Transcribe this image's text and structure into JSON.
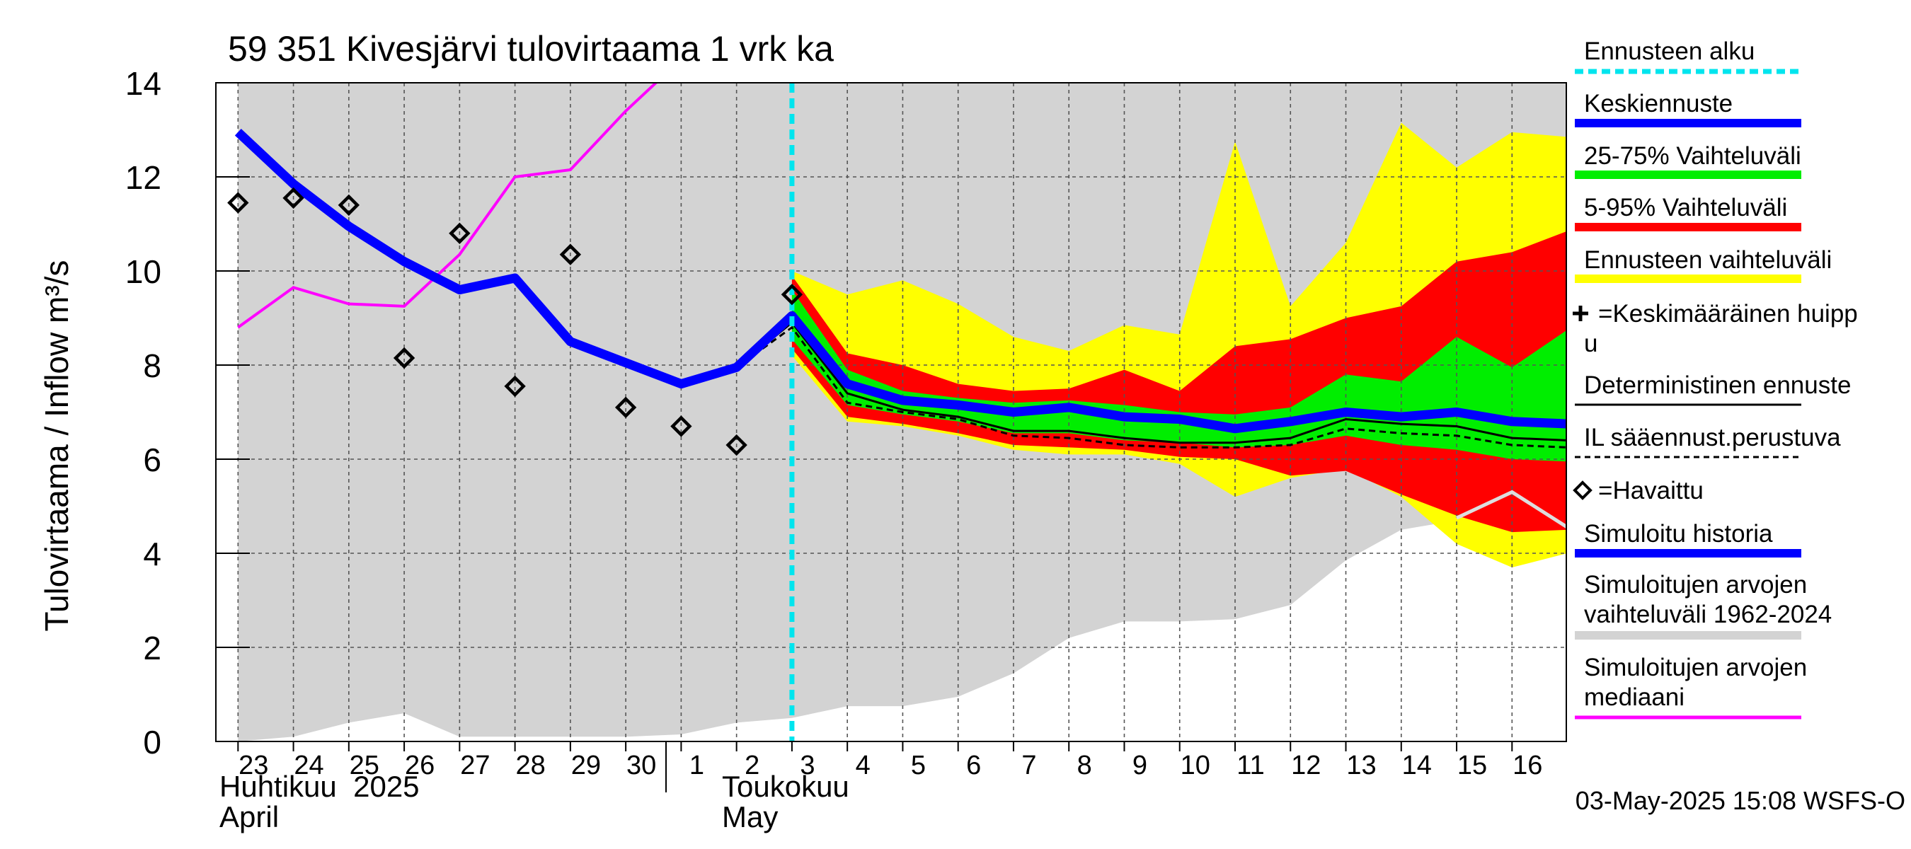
{
  "chart_data": {
    "type": "area",
    "title": "59 351 Kivesjärvi tulovirtaama 1 vrk ka",
    "ylabel": "Tulovirtaama / Inflow   m³/s",
    "ylim": [
      0,
      14
    ],
    "yticks": [
      "0",
      "2",
      "4",
      "6",
      "8",
      "10",
      "12",
      "14"
    ],
    "grid": true,
    "legend_position": "right",
    "x_days": [
      23,
      24,
      25,
      26,
      27,
      28,
      29,
      30,
      31,
      32,
      33,
      34,
      35,
      36,
      37,
      38,
      39,
      40,
      41,
      42,
      43,
      44,
      45,
      46,
      47
    ],
    "xticks": [
      {
        "x": 23,
        "label": "23"
      },
      {
        "x": 24,
        "label": "24"
      },
      {
        "x": 25,
        "label": "25"
      },
      {
        "x": 26,
        "label": "26"
      },
      {
        "x": 27,
        "label": "27"
      },
      {
        "x": 28,
        "label": "28"
      },
      {
        "x": 29,
        "label": "29"
      },
      {
        "x": 30,
        "label": "30"
      },
      {
        "x": 31,
        "label": "1"
      },
      {
        "x": 32,
        "label": "2"
      },
      {
        "x": 33,
        "label": "3"
      },
      {
        "x": 34,
        "label": "4"
      },
      {
        "x": 35,
        "label": "5"
      },
      {
        "x": 36,
        "label": "6"
      },
      {
        "x": 37,
        "label": "7"
      },
      {
        "x": 38,
        "label": "8"
      },
      {
        "x": 39,
        "label": "9"
      },
      {
        "x": 40,
        "label": "10"
      },
      {
        "x": 41,
        "label": "11"
      },
      {
        "x": 42,
        "label": "12"
      },
      {
        "x": 43,
        "label": "13"
      },
      {
        "x": 44,
        "label": "14"
      },
      {
        "x": 45,
        "label": "15"
      },
      {
        "x": 46,
        "label": "16"
      }
    ],
    "month_labels": {
      "april_fi": "Huhtikuu  2025",
      "april_en": "April",
      "may_fi": "Toukokuu",
      "may_en": "May"
    },
    "forecast_start": 33,
    "history_range": {
      "x": [
        23,
        24,
        25,
        26,
        27,
        28,
        29,
        30,
        31,
        32,
        33,
        34,
        35,
        36,
        37,
        38,
        39,
        40,
        41,
        42,
        43,
        44,
        45,
        46,
        47
      ],
      "upper": [
        14,
        14,
        14,
        14,
        14,
        14,
        14,
        14,
        14,
        14,
        14,
        14,
        14,
        14,
        14,
        14,
        14,
        14,
        14,
        14,
        14,
        14,
        14,
        14,
        14
      ],
      "lower": [
        0.0,
        0.1,
        0.4,
        0.6,
        0.1,
        0.1,
        0.1,
        0.1,
        0.15,
        0.4,
        0.5,
        0.75,
        0.75,
        0.95,
        1.45,
        2.2,
        2.55,
        2.55,
        2.6,
        2.9,
        3.85,
        4.5,
        4.7,
        4.9,
        4.8
      ]
    },
    "band_yellow": {
      "x": [
        33,
        34,
        35,
        36,
        37,
        38,
        39,
        40,
        41,
        42,
        43,
        44,
        45,
        46,
        47
      ],
      "upper": [
        10.0,
        9.5,
        9.8,
        9.3,
        8.6,
        8.3,
        8.85,
        8.65,
        12.75,
        9.25,
        10.6,
        13.15,
        12.2,
        12.95,
        12.85
      ],
      "lower": [
        8.2,
        6.8,
        6.7,
        6.5,
        6.2,
        6.1,
        6.1,
        5.9,
        5.2,
        5.6,
        5.8,
        5.2,
        4.2,
        3.7,
        4.0
      ]
    },
    "band_red": {
      "x": [
        33,
        34,
        35,
        36,
        37,
        38,
        39,
        40,
        41,
        42,
        43,
        44,
        45,
        46,
        47
      ],
      "upper": [
        9.9,
        8.25,
        8.0,
        7.6,
        7.45,
        7.5,
        7.9,
        7.45,
        8.4,
        8.55,
        9.0,
        9.25,
        10.2,
        10.4,
        10.85
      ],
      "lower": [
        8.35,
        6.9,
        6.75,
        6.55,
        6.3,
        6.25,
        6.2,
        6.05,
        6.0,
        5.65,
        5.75,
        5.25,
        4.8,
        4.45,
        4.5
      ]
    },
    "band_green": {
      "x": [
        33,
        34,
        35,
        36,
        37,
        38,
        39,
        40,
        41,
        42,
        43,
        44,
        45,
        46,
        47
      ],
      "upper": [
        9.6,
        7.9,
        7.45,
        7.3,
        7.2,
        7.25,
        7.15,
        7.0,
        6.95,
        7.1,
        7.8,
        7.65,
        8.6,
        7.95,
        8.75
      ],
      "lower": [
        8.55,
        7.15,
        6.95,
        6.8,
        6.55,
        6.55,
        6.4,
        6.35,
        6.25,
        6.3,
        6.5,
        6.3,
        6.2,
        6.0,
        5.95
      ]
    },
    "series": [
      {
        "name": "Keskiennuste",
        "color": "#0000ff",
        "x": [
          23,
          24,
          25,
          26,
          27,
          28,
          29,
          30,
          31,
          32,
          33,
          34,
          35,
          36,
          37,
          38,
          39,
          40,
          41,
          42,
          43,
          44,
          45,
          46,
          47
        ],
        "values": [
          12.95,
          11.85,
          10.95,
          10.2,
          9.6,
          9.85,
          8.5,
          8.05,
          7.6,
          7.95,
          9.05,
          7.6,
          7.25,
          7.15,
          7.0,
          7.1,
          6.9,
          6.85,
          6.65,
          6.8,
          7.0,
          6.9,
          7.0,
          6.8,
          6.75
        ]
      },
      {
        "name": "Deterministinen ennuste",
        "color": "#000000",
        "x": [
          32,
          33,
          34,
          35,
          36,
          37,
          38,
          39,
          40,
          41,
          42,
          43,
          44,
          45,
          46,
          47
        ],
        "values": [
          7.95,
          8.9,
          7.4,
          7.05,
          6.9,
          6.6,
          6.6,
          6.45,
          6.35,
          6.35,
          6.45,
          6.85,
          6.75,
          6.7,
          6.45,
          6.4
        ]
      },
      {
        "name": "IL sääennust.perustuva",
        "color": "#000000",
        "x": [
          32,
          33,
          34,
          35,
          36,
          37,
          38,
          39,
          40,
          41,
          42,
          43,
          44,
          45,
          46,
          47
        ],
        "values": [
          7.95,
          8.8,
          7.2,
          7.0,
          6.85,
          6.5,
          6.45,
          6.3,
          6.25,
          6.25,
          6.3,
          6.65,
          6.55,
          6.5,
          6.3,
          6.25
        ]
      },
      {
        "name": "Simuloitujen arvojen mediaani",
        "color": "#ff00ff",
        "x": [
          23,
          24,
          25,
          26,
          27,
          28,
          29,
          30,
          31,
          32,
          33,
          34,
          35,
          36,
          37,
          38,
          39,
          40,
          41,
          42,
          43,
          44,
          45,
          46,
          47
        ],
        "values": [
          8.8,
          9.65,
          9.3,
          9.25,
          10.35,
          12.0,
          12.15,
          13.4,
          14.5,
          15,
          15,
          15,
          15,
          15,
          15,
          15,
          15,
          15,
          15,
          15,
          15,
          15,
          15,
          15,
          15
        ]
      }
    ],
    "history_median_tail": {
      "x": [
        45,
        46,
        47
      ],
      "values": [
        4.75,
        5.3,
        4.55
      ]
    },
    "observed": {
      "name": "=Havaittu",
      "x": [
        23,
        24,
        25,
        26,
        27,
        28,
        29,
        30,
        31,
        32,
        33
      ],
      "values": [
        11.45,
        11.55,
        11.4,
        8.15,
        10.8,
        7.55,
        10.35,
        7.1,
        6.7,
        6.3,
        9.5
      ]
    },
    "legend": [
      {
        "label": "Ennusteen alku",
        "color": "#00e5ee",
        "style": "dashed"
      },
      {
        "label": "Keskiennuste",
        "color": "#0000ff",
        "style": "thick"
      },
      {
        "label": "25-75% Vaihteluväli",
        "color": "#00ee00",
        "style": "thick"
      },
      {
        "label": "5-95% Vaihteluväli",
        "color": "#ff0000",
        "style": "thick"
      },
      {
        "label": "Ennusteen vaihteluväli",
        "color": "#ffff00",
        "style": "thick"
      },
      {
        "label": "=Keskimääräinen huipp",
        "label2": "u",
        "color": "#000000",
        "style": "cross"
      },
      {
        "label": "Deterministinen ennuste",
        "color": "#000000",
        "style": "solid"
      },
      {
        "label": "IL sääennust.perustuva",
        "color": "#000000",
        "style": "dotted"
      },
      {
        "label": "=Havaittu",
        "color": "#000000",
        "style": "diamond"
      },
      {
        "label": "Simuloitu historia",
        "color": "#0000ff",
        "style": "thick"
      },
      {
        "label": "Simuloitujen arvojen",
        "label2": "vaihteluväli 1962-2024",
        "color": "#d3d3d3",
        "style": "thick"
      },
      {
        "label": "Simuloitujen arvojen",
        "label2": "mediaani",
        "color": "#ff00ff",
        "style": "medium"
      }
    ],
    "footer": "03-May-2025 15:08 WSFS-O",
    "colors": {
      "history": "#d3d3d3",
      "yellow": "#ffff00",
      "red": "#ff0000",
      "green": "#00ee00",
      "forecast_start": "#00e5ee",
      "history_median_tail": "#dddddd"
    }
  }
}
